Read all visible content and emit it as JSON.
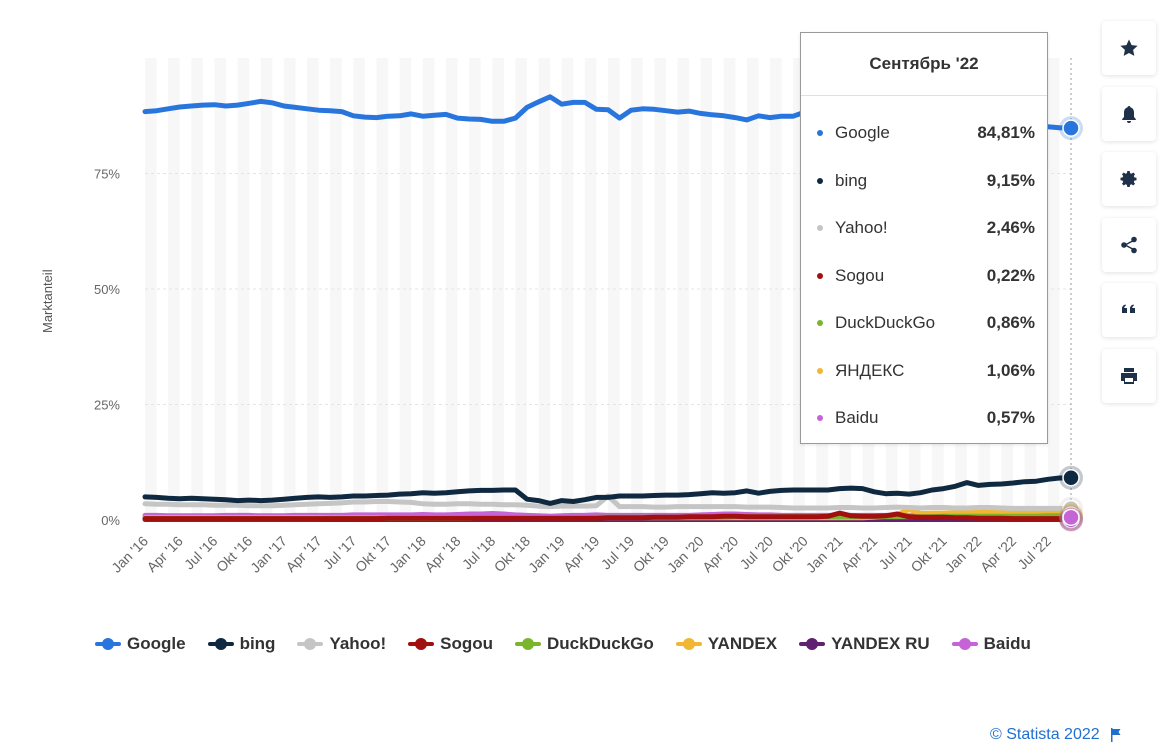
{
  "chart_data": {
    "type": "line",
    "ylabel": "Marktanteil",
    "ylim": [
      0,
      100
    ],
    "yticks": [
      "0%",
      "25%",
      "50%",
      "75%"
    ],
    "ytick_values": [
      0,
      25,
      50,
      75
    ],
    "x": [
      "Jan '16",
      "Feb '16",
      "Mrz '16",
      "Apr '16",
      "Mai '16",
      "Jun '16",
      "Jul '16",
      "Aug '16",
      "Sep '16",
      "Okt '16",
      "Nov '16",
      "Dez '16",
      "Jan '17",
      "Feb '17",
      "Mrz '17",
      "Apr '17",
      "Mai '17",
      "Jun '17",
      "Jul '17",
      "Aug '17",
      "Sep '17",
      "Okt '17",
      "Nov '17",
      "Dez '17",
      "Jan '18",
      "Feb '18",
      "Mrz '18",
      "Apr '18",
      "Mai '18",
      "Jun '18",
      "Jul '18",
      "Aug '18",
      "Sep '18",
      "Okt '18",
      "Nov '18",
      "Dez '18",
      "Jan '19",
      "Feb '19",
      "Mrz '19",
      "Apr '19",
      "Mai '19",
      "Jun '19",
      "Jul '19",
      "Aug '19",
      "Sep '19",
      "Okt '19",
      "Nov '19",
      "Dez '19",
      "Jan '20",
      "Feb '20",
      "Mrz '20",
      "Apr '20",
      "Mai '20",
      "Jun '20",
      "Jul '20",
      "Aug '20",
      "Sep '20",
      "Okt '20",
      "Nov '20",
      "Dez '20",
      "Jan '21",
      "Feb '21",
      "Mrz '21",
      "Apr '21",
      "Mai '21",
      "Jun '21",
      "Jul '21",
      "Aug '21",
      "Sep '21",
      "Okt '21",
      "Nov '21",
      "Dez '21",
      "Jan '22",
      "Feb '22",
      "Mrz '22",
      "Apr '22",
      "Mai '22",
      "Jun '22",
      "Jul '22",
      "Aug '22",
      "Sep '22"
    ],
    "xtick_labels": [
      "Jan '16",
      "Apr '16",
      "Jul '16",
      "Okt '16",
      "Jan '17",
      "Apr '17",
      "Jul '17",
      "Okt '17",
      "Jan '18",
      "Apr '18",
      "Jul '18",
      "Okt '18",
      "Jan '19",
      "Apr '19",
      "Jul '19",
      "Okt '19",
      "Jan '20",
      "Apr '20",
      "Jul '20",
      "Okt '20",
      "Jan '21",
      "Apr '21",
      "Jul '21",
      "Okt '21",
      "Jan '22",
      "Apr '22",
      "Jul '22"
    ],
    "series": [
      {
        "name": "Google",
        "color": "#2876dd",
        "values": [
          88.4,
          88.6,
          89.0,
          89.4,
          89.6,
          89.8,
          89.9,
          89.6,
          89.8,
          90.2,
          90.6,
          90.3,
          89.6,
          89.3,
          89.0,
          88.7,
          88.6,
          88.4,
          87.5,
          87.2,
          87.1,
          87.4,
          87.5,
          87.9,
          87.4,
          87.6,
          87.8,
          87.0,
          86.8,
          86.7,
          86.3,
          86.3,
          87.0,
          89.3,
          90.5,
          91.6,
          90.0,
          90.4,
          90.4,
          88.9,
          88.8,
          87.0,
          88.7,
          89.0,
          88.9,
          88.6,
          88.3,
          88.5,
          88.0,
          87.7,
          87.5,
          87.1,
          86.6,
          87.5,
          87.1,
          87.4,
          87.4,
          88.3,
          88.5,
          88.3,
          88.6,
          88.5,
          88.0,
          87.5,
          87.2,
          87.0,
          86.9,
          86.8,
          86.7,
          86.6,
          86.5,
          86.3,
          86.2,
          86.0,
          85.9,
          85.7,
          85.5,
          85.3,
          85.1,
          84.9,
          84.81
        ]
      },
      {
        "name": "bing",
        "color": "#0f2941",
        "values": [
          5.0,
          4.9,
          4.7,
          4.6,
          4.7,
          4.6,
          4.5,
          4.4,
          4.2,
          4.3,
          4.2,
          4.3,
          4.5,
          4.7,
          4.9,
          5.0,
          4.9,
          5.0,
          5.2,
          5.2,
          5.3,
          5.4,
          5.6,
          5.7,
          5.9,
          5.8,
          5.9,
          6.1,
          6.3,
          6.4,
          6.4,
          6.5,
          6.5,
          4.5,
          4.2,
          3.6,
          4.2,
          4.0,
          4.4,
          4.9,
          4.9,
          5.2,
          5.2,
          5.2,
          5.3,
          5.4,
          5.4,
          5.5,
          5.7,
          5.9,
          5.8,
          5.9,
          6.3,
          5.8,
          6.2,
          6.4,
          6.5,
          6.5,
          6.5,
          6.5,
          6.8,
          6.9,
          6.8,
          6.1,
          5.7,
          5.8,
          5.6,
          5.9,
          6.5,
          6.8,
          7.3,
          8.1,
          7.5,
          7.7,
          7.8,
          8.0,
          8.3,
          8.4,
          8.8,
          9.1,
          9.15
        ]
      },
      {
        "name": "Yahoo!",
        "color": "#c5c5c5",
        "values": [
          3.5,
          3.4,
          3.4,
          3.3,
          3.3,
          3.3,
          3.2,
          3.2,
          3.2,
          3.1,
          3.1,
          3.1,
          3.2,
          3.3,
          3.4,
          3.5,
          3.6,
          3.7,
          3.9,
          3.9,
          4.0,
          4.0,
          3.9,
          3.8,
          3.5,
          3.4,
          3.4,
          3.5,
          3.5,
          3.4,
          3.4,
          3.3,
          3.3,
          3.2,
          3.0,
          2.9,
          3.0,
          3.0,
          3.0,
          3.1,
          5.2,
          2.9,
          2.9,
          2.9,
          2.8,
          2.8,
          2.9,
          2.9,
          2.9,
          2.9,
          2.9,
          2.9,
          2.8,
          2.8,
          2.8,
          2.7,
          2.6,
          2.6,
          2.6,
          2.6,
          2.7,
          2.7,
          2.6,
          2.6,
          2.7,
          2.8,
          2.7,
          2.6,
          2.7,
          2.7,
          2.6,
          2.6,
          2.7,
          2.7,
          2.6,
          2.5,
          2.5,
          2.5,
          2.5,
          2.5,
          2.46
        ]
      },
      {
        "name": "Sogou",
        "color": "#a10f0f",
        "values": [
          0.3,
          0.3,
          0.3,
          0.3,
          0.3,
          0.3,
          0.3,
          0.3,
          0.3,
          0.3,
          0.3,
          0.3,
          0.3,
          0.3,
          0.3,
          0.3,
          0.3,
          0.3,
          0.3,
          0.3,
          0.3,
          0.4,
          0.4,
          0.4,
          0.4,
          0.4,
          0.4,
          0.4,
          0.4,
          0.4,
          0.4,
          0.4,
          0.4,
          0.4,
          0.4,
          0.4,
          0.4,
          0.4,
          0.4,
          0.4,
          0.5,
          0.5,
          0.5,
          0.5,
          0.6,
          0.6,
          0.6,
          0.7,
          0.7,
          0.7,
          0.8,
          0.8,
          0.7,
          0.7,
          0.7,
          0.7,
          0.7,
          0.7,
          0.7,
          0.8,
          1.5,
          0.9,
          0.8,
          0.8,
          0.9,
          1.3,
          0.7,
          0.6,
          0.6,
          0.6,
          0.5,
          0.5,
          0.4,
          0.4,
          0.4,
          0.3,
          0.3,
          0.3,
          0.3,
          0.3,
          0.22
        ]
      },
      {
        "name": "DuckDuckGo",
        "color": "#7ab52c",
        "values": [
          0.3,
          0.3,
          0.3,
          0.3,
          0.3,
          0.3,
          0.3,
          0.3,
          0.3,
          0.3,
          0.3,
          0.3,
          0.3,
          0.3,
          0.3,
          0.3,
          0.4,
          0.4,
          0.4,
          0.4,
          0.4,
          0.4,
          0.4,
          0.4,
          0.4,
          0.4,
          0.4,
          0.4,
          0.4,
          0.5,
          0.5,
          0.5,
          0.5,
          0.5,
          0.5,
          0.5,
          0.5,
          0.5,
          0.5,
          0.6,
          0.6,
          0.6,
          0.6,
          0.6,
          0.6,
          0.6,
          0.6,
          0.6,
          0.6,
          0.6,
          0.6,
          0.7,
          0.7,
          0.7,
          0.7,
          0.7,
          0.7,
          0.7,
          0.7,
          0.7,
          0.7,
          0.7,
          0.7,
          0.7,
          0.7,
          0.7,
          0.7,
          0.7,
          0.7,
          0.8,
          0.8,
          0.8,
          0.8,
          0.8,
          0.8,
          0.8,
          0.8,
          0.8,
          0.9,
          0.9,
          0.86
        ]
      },
      {
        "name": "YANDEX",
        "color": "#f2b732",
        "values": [
          0.5,
          0.5,
          0.5,
          0.5,
          0.5,
          0.5,
          0.5,
          0.5,
          0.5,
          0.5,
          0.5,
          0.5,
          0.5,
          0.5,
          0.5,
          0.5,
          0.5,
          0.5,
          0.5,
          0.5,
          0.5,
          0.5,
          0.5,
          0.5,
          0.5,
          0.5,
          0.5,
          0.5,
          0.5,
          0.5,
          0.5,
          0.5,
          0.5,
          0.5,
          0.5,
          0.5,
          0.5,
          0.5,
          0.5,
          0.5,
          0.5,
          0.5,
          0.5,
          0.5,
          0.5,
          0.5,
          0.5,
          0.5,
          0.5,
          0.5,
          0.5,
          0.5,
          0.5,
          0.5,
          0.5,
          0.5,
          0.5,
          0.5,
          0.5,
          0.5,
          0.5,
          0.5,
          0.5,
          0.6,
          0.8,
          1.2,
          2.3,
          1.4,
          1.5,
          1.5,
          1.6,
          1.6,
          1.8,
          1.9,
          1.8,
          1.7,
          1.6,
          1.7,
          1.8,
          1.5,
          1.06
        ]
      },
      {
        "name": "YANDEX RU",
        "color": "#5f2170",
        "values": [
          0.1,
          0.1,
          0.1,
          0.1,
          0.1,
          0.1,
          0.1,
          0.1,
          0.1,
          0.1,
          0.1,
          0.1,
          0.1,
          0.1,
          0.1,
          0.1,
          0.1,
          0.1,
          0.1,
          0.1,
          0.1,
          0.1,
          0.1,
          0.1,
          0.1,
          0.1,
          0.1,
          0.1,
          0.1,
          0.1,
          0.1,
          0.1,
          0.1,
          0.1,
          0.1,
          0.1,
          0.1,
          0.1,
          0.1,
          0.1,
          0.1,
          0.1,
          0.1,
          0.1,
          0.1,
          0.1,
          0.1,
          0.1,
          0.1,
          0.1,
          0.1,
          0.1,
          0.1,
          0.1,
          0.1,
          0.1,
          0.1,
          0.1,
          0.1,
          0.1,
          0.1,
          0.1,
          0.1,
          0.1,
          0.1,
          0.1,
          0.1,
          0.1,
          0.1,
          0.1,
          0.1,
          0.1,
          0.1,
          0.1,
          0.1,
          0.1,
          0.1,
          0.1,
          0.1,
          0.1,
          0.1
        ]
      },
      {
        "name": "Baidu",
        "color": "#c464d6",
        "values": [
          1.0,
          1.0,
          0.9,
          0.9,
          0.9,
          0.9,
          0.9,
          1.0,
          1.0,
          1.0,
          0.9,
          0.9,
          0.9,
          1.0,
          1.0,
          1.0,
          1.0,
          1.0,
          1.1,
          1.1,
          1.1,
          1.1,
          1.1,
          1.1,
          1.2,
          1.1,
          1.1,
          1.2,
          1.3,
          1.3,
          1.4,
          1.3,
          1.1,
          1.0,
          0.9,
          0.8,
          0.9,
          1.0,
          1.0,
          1.1,
          1.0,
          1.0,
          1.0,
          1.0,
          1.0,
          1.0,
          1.0,
          1.0,
          1.1,
          1.2,
          1.3,
          1.3,
          1.2,
          1.1,
          1.1,
          1.0,
          1.0,
          1.0,
          1.0,
          1.0,
          1.0,
          1.0,
          1.0,
          1.0,
          1.0,
          1.0,
          0.9,
          0.9,
          0.8,
          0.8,
          0.8,
          0.8,
          0.9,
          0.9,
          1.1,
          1.2,
          1.2,
          0.9,
          0.8,
          0.6,
          0.57
        ]
      }
    ]
  },
  "tooltip": {
    "title": "Сентябрь '22",
    "rows": [
      {
        "name": "Google",
        "value": "84,81%",
        "color": "#2876dd"
      },
      {
        "name": "bing",
        "value": "9,15%",
        "color": "#0f2941"
      },
      {
        "name": "Yahoo!",
        "value": "2,46%",
        "color": "#c5c5c5"
      },
      {
        "name": "Sogou",
        "value": "0,22%",
        "color": "#a10f0f"
      },
      {
        "name": "DuckDuckGo",
        "value": "0,86%",
        "color": "#7ab52c"
      },
      {
        "name": "ЯНДЕКС",
        "value": "1,06%",
        "color": "#f2b732"
      },
      {
        "name": "Baidu",
        "value": "0,57%",
        "color": "#c464d6"
      }
    ]
  },
  "legend": [
    {
      "name": "Google",
      "color": "#2876dd"
    },
    {
      "name": "bing",
      "color": "#0f2941"
    },
    {
      "name": "Yahoo!",
      "color": "#c5c5c5"
    },
    {
      "name": "Sogou",
      "color": "#a10f0f"
    },
    {
      "name": "DuckDuckGo",
      "color": "#7ab52c"
    },
    {
      "name": "YANDEX",
      "color": "#f2b732"
    },
    {
      "name": "YANDEX RU",
      "color": "#5f2170"
    },
    {
      "name": "Baidu",
      "color": "#c464d6"
    }
  ],
  "side_buttons": [
    {
      "icon": "star-icon"
    },
    {
      "icon": "bell-icon"
    },
    {
      "icon": "gear-icon"
    },
    {
      "icon": "share-icon"
    },
    {
      "icon": "quote-icon"
    },
    {
      "icon": "print-icon"
    }
  ],
  "credit": "© Statista 2022"
}
